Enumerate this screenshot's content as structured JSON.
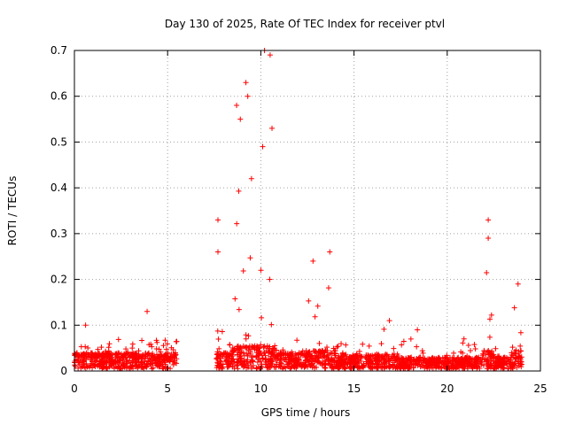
{
  "chart_data": {
    "type": "scatter",
    "title": "Day 130 of 2025, Rate Of TEC Index for receiver ptvl",
    "xlabel": "GPS time / hours",
    "ylabel": "ROTI / TECUs",
    "xlim": [
      0,
      25
    ],
    "ylim": [
      0,
      0.7
    ],
    "xticks": [
      0,
      5,
      10,
      15,
      20,
      25
    ],
    "yticks": [
      0,
      0.1,
      0.2,
      0.3,
      0.4,
      0.5,
      0.6,
      0.7
    ],
    "ytick_labels": [
      "0",
      "0.1",
      "0.2",
      "0.3",
      "0.4",
      "0.5",
      "0.6",
      "0.7"
    ],
    "grid": true,
    "legend": "none",
    "series_color": "#ff0000",
    "marker": "+",
    "notable_points": [
      {
        "x": 0.6,
        "y": 0.1
      },
      {
        "x": 3.9,
        "y": 0.13
      },
      {
        "x": 7.7,
        "y": 0.33
      },
      {
        "x": 7.7,
        "y": 0.26
      },
      {
        "x": 8.7,
        "y": 0.58
      },
      {
        "x": 8.9,
        "y": 0.55
      },
      {
        "x": 9.2,
        "y": 0.63
      },
      {
        "x": 9.3,
        "y": 0.6
      },
      {
        "x": 9.5,
        "y": 0.42
      },
      {
        "x": 10.1,
        "y": 0.49
      },
      {
        "x": 10.2,
        "y": 0.7
      },
      {
        "x": 10.5,
        "y": 0.69
      },
      {
        "x": 10.6,
        "y": 0.53
      },
      {
        "x": 12.8,
        "y": 0.24
      },
      {
        "x": 13.7,
        "y": 0.26
      },
      {
        "x": 16.9,
        "y": 0.11
      },
      {
        "x": 18.4,
        "y": 0.09
      },
      {
        "x": 20.9,
        "y": 0.07
      },
      {
        "x": 22.2,
        "y": 0.33
      },
      {
        "x": 22.2,
        "y": 0.29
      },
      {
        "x": 23.8,
        "y": 0.19
      }
    ],
    "activity_segments": [
      {
        "from": 0.0,
        "to": 5.5,
        "base": 0.035,
        "peak": 0.07
      },
      {
        "from": 7.6,
        "to": 8.4,
        "base": 0.035,
        "peak": 0.1
      },
      {
        "from": 8.4,
        "to": 9.8,
        "base": 0.05,
        "peak": 0.45
      },
      {
        "from": 9.8,
        "to": 10.9,
        "base": 0.05,
        "peak": 0.5
      },
      {
        "from": 10.9,
        "to": 12.5,
        "base": 0.035,
        "peak": 0.08
      },
      {
        "from": 12.5,
        "to": 14.0,
        "base": 0.04,
        "peak": 0.19
      },
      {
        "from": 14.0,
        "to": 16.2,
        "base": 0.03,
        "peak": 0.07
      },
      {
        "from": 16.2,
        "to": 17.2,
        "base": 0.035,
        "peak": 0.1
      },
      {
        "from": 17.2,
        "to": 21.8,
        "base": 0.025,
        "peak": 0.07
      },
      {
        "from": 21.8,
        "to": 22.5,
        "base": 0.04,
        "peak": 0.22
      },
      {
        "from": 22.5,
        "to": 23.4,
        "base": 0.025,
        "peak": 0.06
      },
      {
        "from": 23.4,
        "to": 24.0,
        "base": 0.04,
        "peak": 0.19
      }
    ]
  }
}
